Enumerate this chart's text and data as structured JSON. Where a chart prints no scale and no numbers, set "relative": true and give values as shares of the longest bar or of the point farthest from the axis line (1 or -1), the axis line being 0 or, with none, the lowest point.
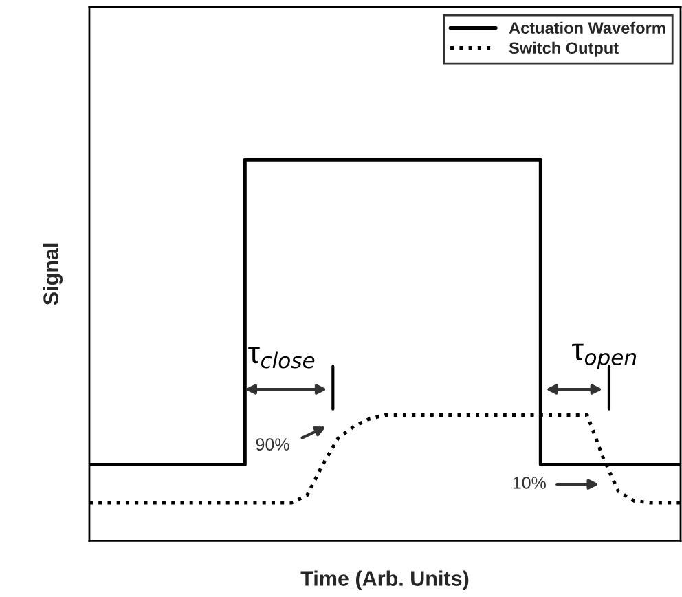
{
  "chart_data": {
    "type": "line",
    "relative": true,
    "xlabel": "Time (Arb. Units)",
    "ylabel": "Signal",
    "categories": [
      null,
      null,
      null,
      null,
      null,
      null,
      null,
      null,
      null,
      null,
      null,
      null,
      null,
      null,
      null,
      null,
      null,
      null,
      null,
      null,
      null,
      null,
      null,
      null,
      null,
      null,
      null,
      null,
      null,
      null,
      null,
      null,
      null,
      null,
      null,
      null,
      null,
      null,
      null
    ],
    "series": [
      {
        "name": "Actuation Waveform",
        "type": "step",
        "color": "#000000",
        "line_style": "solid",
        "values": [
          0.2,
          0.2,
          0.2,
          0.2,
          0.2,
          0.2,
          0.2,
          0.2,
          0.2,
          0.2,
          1,
          1,
          1,
          1,
          1,
          1,
          1,
          1,
          1,
          1,
          1,
          1,
          1,
          1,
          1,
          1,
          1,
          1,
          1,
          0.2,
          0.2,
          0.2,
          0.2,
          0.2,
          0.2,
          0.2,
          0.2,
          0.2,
          0.2
        ]
      },
      {
        "name": "Switch Output",
        "color": "#000000",
        "line_style": "dotted",
        "values": [
          0.1,
          0.1,
          0.1,
          0.1,
          0.1,
          0.1,
          0.1,
          0.1,
          0.1,
          0.1,
          0.1,
          0.1,
          0.1,
          0.1,
          0.12,
          0.2,
          0.27,
          0.3,
          0.32,
          0.33,
          0.33,
          0.33,
          0.33,
          0.33,
          0.33,
          0.33,
          0.33,
          0.33,
          0.33,
          0.33,
          0.33,
          0.33,
          0.33,
          0.22,
          0.13,
          0.105,
          0.1,
          0.1,
          0.1
        ]
      }
    ],
    "annotations": [
      "τ$_{close}$",
      "τ$_{open}$",
      "90%",
      "10%"
    ],
    "legend": "top right",
    "grid": false
  }
}
